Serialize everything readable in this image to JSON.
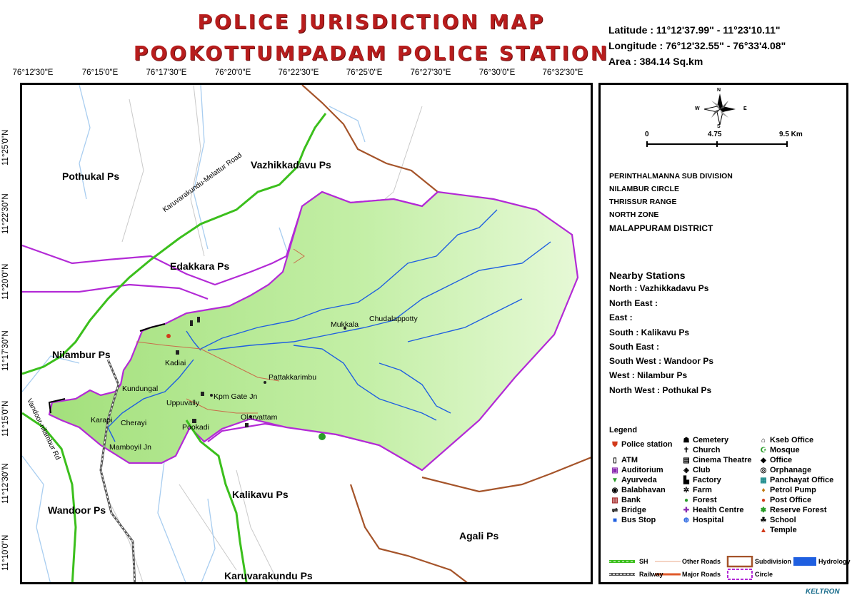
{
  "title_line1": "POLICE JURISDICTION MAP",
  "title_line2": "POOKOTTUMPADAM POLICE STATION",
  "latitude": "Latitude : 11°12'37.99\"  -  11°23'10.11\"",
  "longitude": "Longitude : 76°12'32.55\"  -  76°33'4.08\"",
  "area": "Area : 384.14 Sq.km",
  "lon_ticks": [
    "76°12'30\"E",
    "76°15'0\"E",
    "76°17'30\"E",
    "76°20'0\"E",
    "76°22'30\"E",
    "76°25'0\"E",
    "76°27'30\"E",
    "76°30'0\"E",
    "76°32'30\"E"
  ],
  "lat_ticks": [
    "11°25'0\"N",
    "11°22'30\"N",
    "11°20'0\"N",
    "11°17'30\"N",
    "11°15'0\"N",
    "11°12'30\"N",
    "11°10'0\"N"
  ],
  "stations": {
    "pothukal": "Pothukal Ps",
    "vazhikkadavu": "Vazhikkadavu Ps",
    "edakkara": "Edakkara Ps",
    "nilambur": "Nilambur Ps",
    "wandoor": "Wandoor Ps",
    "kalikavu": "Kalikavu Ps",
    "agali": "Agali Ps",
    "karuvarakundu": "Karuvarakundu Ps"
  },
  "roads": {
    "karuvarakundu_melattur": "Karuvarakundu-Melattur Road",
    "vandoor_nilambur": "Vandoor-nilambur Rd"
  },
  "places": {
    "mukkala": "Mukkala",
    "chudalappotty": "Chudalappotty",
    "pattakkarimbu": "Pattakkarimbu",
    "kpm_gate_jn": "Kpm Gate Jn",
    "uppuvally": "Uppuvally",
    "kundungal": "Kundungal",
    "karapi": "Karapi",
    "cherayi": "Cherayi",
    "mamboyil_jn": "Mamboyil Jn",
    "olarvattam": "Olarvattam",
    "kadiai": "Kadiai",
    "pookkadi": "Pookadi"
  },
  "scale": {
    "s0": "0",
    "s1": "4.75",
    "s2": "9.5 Km"
  },
  "compass": {
    "n": "N",
    "s": "S",
    "e": "E",
    "w": "W"
  },
  "admin": [
    "PERINTHALMANNA SUB DIVISION",
    "NILAMBUR CIRCLE",
    "THRISSUR RANGE",
    "NORTH ZONE",
    "MALAPPURAM  DISTRICT"
  ],
  "nearby_title": "Nearby Stations",
  "nearby": [
    "North : Vazhikkadavu Ps",
    "North East :",
    "East :",
    "South : Kalikavu Ps",
    "South East :",
    "South West : Wandoor Ps",
    "West : Nilambur Ps",
    "North West : Pothukal Ps"
  ],
  "legend_title": "Legend",
  "legend_col1": [
    "Police station",
    "ATM",
    "Auditorium",
    "Ayurveda",
    "Balabhavan",
    "Bank",
    "Bridge",
    "Bus Stop"
  ],
  "legend_col2": [
    "Cemetery",
    "Church",
    "Cinema Theatre",
    "Club",
    "Factory",
    "Farm",
    "Forest",
    "Health Centre",
    "Hospital"
  ],
  "legend_col3": [
    "Kseb Office",
    "Mosque",
    "Office",
    "Orphanage",
    "Panchayat Office",
    "Petrol Pump",
    "Post Office",
    "Reserve Forest",
    "School",
    "Temple"
  ],
  "line_legend": {
    "sh": "SH",
    "other_roads": "Other Roads",
    "subdivision": "Subdivision",
    "hydrology": "Hydrology",
    "railway": "Railway",
    "major_roads": "Major Roads",
    "circle": "Circle"
  },
  "credit": "KELTRON",
  "colors": {
    "title": "#b81d1d",
    "jurisdiction_fill": "#b8ec98",
    "subdivision": "#a5542a",
    "circle": "#b32ad6",
    "sh": "#3bbf1c",
    "hydrology": "#1f5fe0"
  }
}
